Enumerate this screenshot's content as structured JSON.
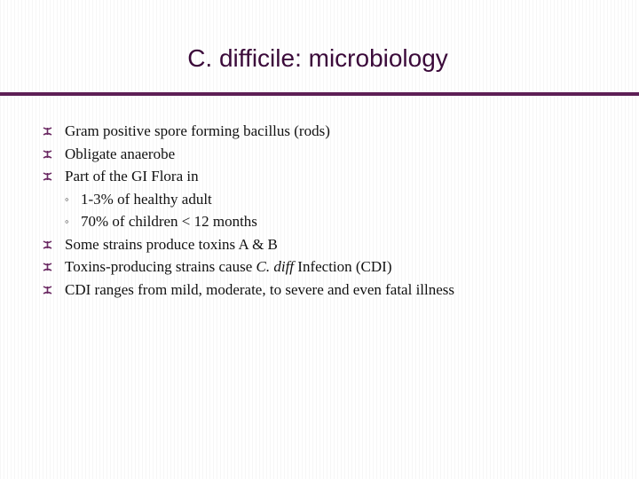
{
  "slide": {
    "title": "C. difficile: microbiology",
    "accent_color": "#5e1f56",
    "bullet_icon": "fleuron-bullet-icon",
    "sub_bullet_icon": "hollow-circle-icon",
    "bullets": [
      {
        "text": "Gram positive spore forming bacillus (rods)"
      },
      {
        "text": "Obligate anaerobe"
      },
      {
        "text": "Part of the GI Flora in"
      },
      {
        "sub_text": "1-3% of healthy adult"
      },
      {
        "sub_text": "70% of children < 12 months"
      },
      {
        "text": "Some strains produce toxins A & B"
      },
      {
        "text_before": "Toxins-producing strains cause ",
        "text_italic": "C. diff",
        "text_after": " Infection (CDI)"
      },
      {
        "text": "CDI ranges from mild, moderate, to severe and even fatal illness"
      }
    ],
    "sub_marker": "◦"
  }
}
